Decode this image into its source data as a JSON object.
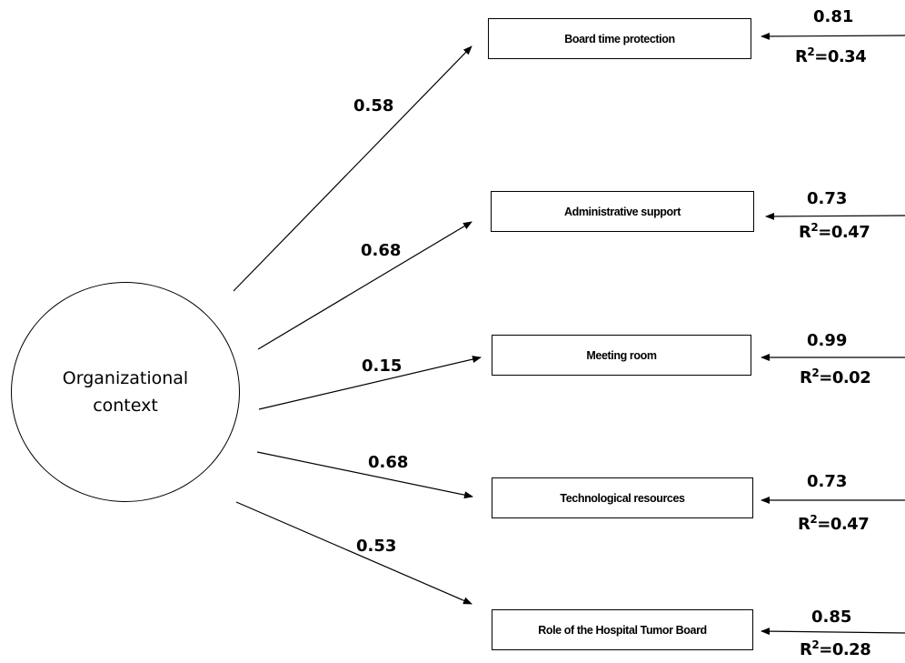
{
  "latent": {
    "label": "Organizational context"
  },
  "indicators": [
    {
      "name": "Board time protection",
      "loading": "0.58",
      "error": "0.81",
      "r2_label": "R",
      "r2_sup": "2",
      "r2_value": "=0.34"
    },
    {
      "name": "Administrative support",
      "loading": "0.68",
      "error": "0.73",
      "r2_label": "R",
      "r2_sup": "2",
      "r2_value": "=0.47"
    },
    {
      "name": "Meeting room",
      "loading": "0.15",
      "error": "0.99",
      "r2_label": "R",
      "r2_sup": "2",
      "r2_value": "=0.02"
    },
    {
      "name": "Technological resources",
      "loading": "0.68",
      "error": "0.73",
      "r2_label": "R",
      "r2_sup": "2",
      "r2_value": "=0.47"
    },
    {
      "name": "Role of the Hospital Tumor  Board",
      "loading": "0.53",
      "error": "0.85",
      "r2_label": "R",
      "r2_sup": "2",
      "r2_value": "=0.28"
    }
  ]
}
